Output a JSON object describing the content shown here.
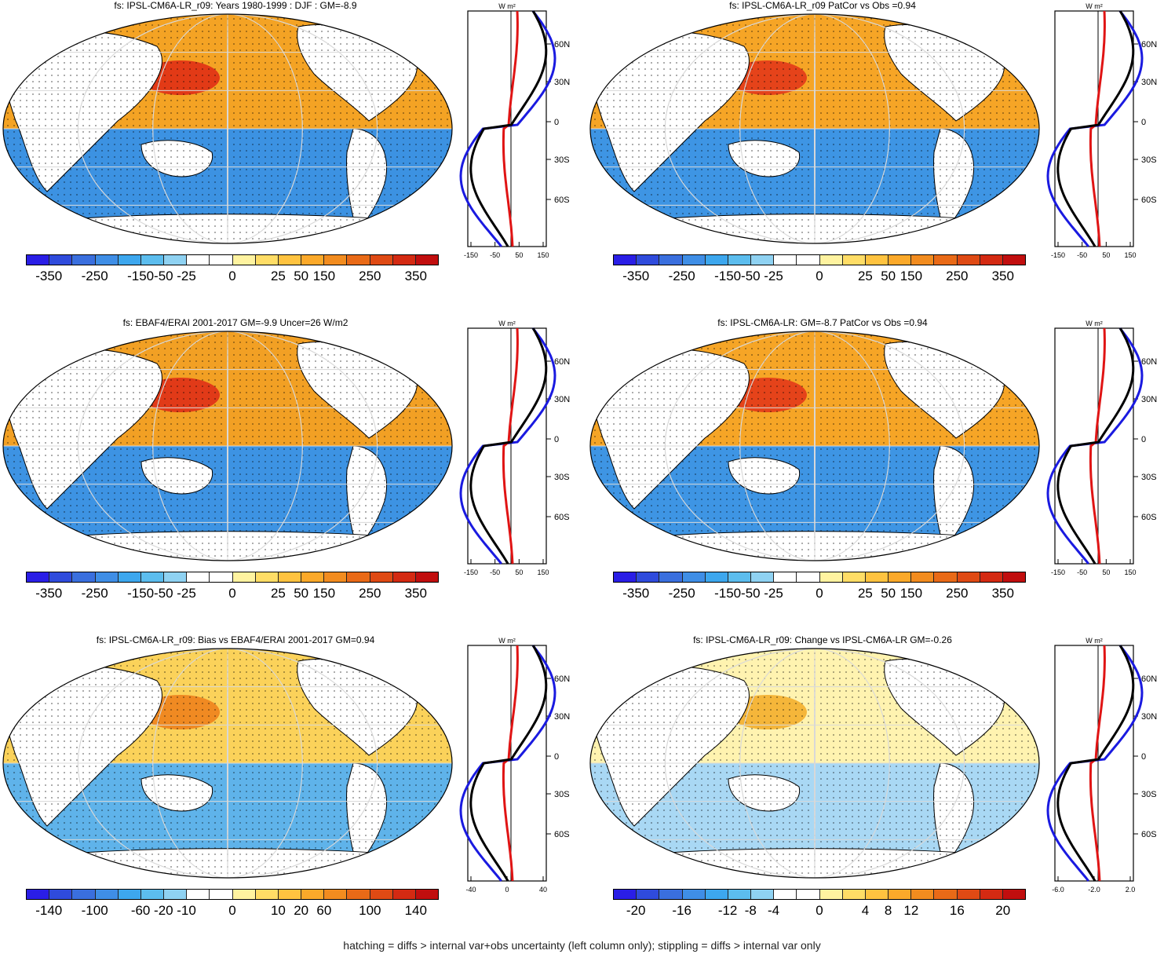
{
  "panels": [
    {
      "title": "fs: IPSL-CM6A-LR_r09: Years 1980-1999 : DJF : GM=-8.9",
      "colorbar": {
        "labels": [
          "-350",
          "-250",
          "-150",
          "-50",
          "-25",
          "0",
          "25",
          "50",
          "150",
          "250",
          "350"
        ],
        "colors": [
          "#2a1ee6",
          "#2f4bdc",
          "#3a6fde",
          "#3f8ee6",
          "#3da7ee",
          "#5cbdee",
          "#8fd2f2",
          "#ffffff",
          "#ffffff",
          "#fff3a0",
          "#ffdd66",
          "#ffc340",
          "#fba92a",
          "#f28c1f",
          "#e96a17",
          "#df4a14",
          "#d42a12",
          "#c10e0e"
        ]
      },
      "zonal": {
        "tick_labels": [
          "-150",
          "-50",
          "50",
          "150"
        ],
        "unit": "W m²",
        "lat_labels": [
          "60N",
          "30N",
          "0",
          "30S",
          "60S"
        ]
      }
    },
    {
      "title": "fs: IPSL-CM6A-LR_r09 PatCor vs Obs =0.94",
      "colorbar": {
        "labels": [
          "-350",
          "-250",
          "-150",
          "-50",
          "-25",
          "0",
          "25",
          "50",
          "150",
          "250",
          "350"
        ],
        "colors": [
          "#2a1ee6",
          "#2f4bdc",
          "#3a6fde",
          "#3f8ee6",
          "#3da7ee",
          "#5cbdee",
          "#8fd2f2",
          "#ffffff",
          "#ffffff",
          "#fff3a0",
          "#ffdd66",
          "#ffc340",
          "#fba92a",
          "#f28c1f",
          "#e96a17",
          "#df4a14",
          "#d42a12",
          "#c10e0e"
        ]
      },
      "zonal": {
        "tick_labels": [
          "-150",
          "-50",
          "50",
          "150"
        ],
        "unit": "W m²",
        "lat_labels": [
          "60N",
          "30N",
          "0",
          "30S",
          "60S"
        ]
      }
    },
    {
      "title": "fs: EBAF4/ERAI 2001-2017 GM=-9.9 Uncer=26 W/m2",
      "colorbar": {
        "labels": [
          "-350",
          "-250",
          "-150",
          "-50",
          "-25",
          "0",
          "25",
          "50",
          "150",
          "250",
          "350"
        ],
        "colors": [
          "#2a1ee6",
          "#2f4bdc",
          "#3a6fde",
          "#3f8ee6",
          "#3da7ee",
          "#5cbdee",
          "#8fd2f2",
          "#ffffff",
          "#ffffff",
          "#fff3a0",
          "#ffdd66",
          "#ffc340",
          "#fba92a",
          "#f28c1f",
          "#e96a17",
          "#df4a14",
          "#d42a12",
          "#c10e0e"
        ]
      },
      "zonal": {
        "tick_labels": [
          "-150",
          "-50",
          "50",
          "150"
        ],
        "unit": "W m²",
        "lat_labels": [
          "60N",
          "30N",
          "0",
          "30S",
          "60S"
        ]
      }
    },
    {
      "title": "fs: IPSL-CM6A-LR: GM=-8.7 PatCor vs Obs =0.94",
      "colorbar": {
        "labels": [
          "-350",
          "-250",
          "-150",
          "-50",
          "-25",
          "0",
          "25",
          "50",
          "150",
          "250",
          "350"
        ],
        "colors": [
          "#2a1ee6",
          "#2f4bdc",
          "#3a6fde",
          "#3f8ee6",
          "#3da7ee",
          "#5cbdee",
          "#8fd2f2",
          "#ffffff",
          "#ffffff",
          "#fff3a0",
          "#ffdd66",
          "#ffc340",
          "#fba92a",
          "#f28c1f",
          "#e96a17",
          "#df4a14",
          "#d42a12",
          "#c10e0e"
        ]
      },
      "zonal": {
        "tick_labels": [
          "-150",
          "-50",
          "50",
          "150"
        ],
        "unit": "W m²",
        "lat_labels": [
          "60N",
          "30N",
          "0",
          "30S",
          "60S"
        ]
      }
    },
    {
      "title": "fs: IPSL-CM6A-LR_r09: Bias vs EBAF4/ERAI 2001-2017 GM=0.94",
      "colorbar": {
        "labels": [
          "-140",
          "-100",
          "-60",
          "-20",
          "-10",
          "0",
          "10",
          "20",
          "60",
          "100",
          "140"
        ],
        "colors": [
          "#2a1ee6",
          "#2f4bdc",
          "#3a6fde",
          "#3f8ee6",
          "#3da7ee",
          "#5cbdee",
          "#8fd2f2",
          "#ffffff",
          "#ffffff",
          "#fff3a0",
          "#ffdd66",
          "#ffc340",
          "#fba92a",
          "#f28c1f",
          "#e96a17",
          "#df4a14",
          "#d42a12",
          "#c10e0e"
        ]
      },
      "zonal": {
        "tick_labels": [
          "-40",
          "0",
          "40"
        ],
        "unit": "W m²",
        "lat_labels": [
          "60N",
          "30N",
          "0",
          "30S",
          "60S"
        ]
      }
    },
    {
      "title": "fs: IPSL-CM6A-LR_r09: Change vs IPSL-CM6A-LR GM=-0.26",
      "colorbar": {
        "labels": [
          "-20",
          "-16",
          "-12",
          "-8",
          "-4",
          "0",
          "4",
          "8",
          "12",
          "16",
          "20"
        ],
        "colors": [
          "#2a1ee6",
          "#2f4bdc",
          "#3a6fde",
          "#3f8ee6",
          "#3da7ee",
          "#5cbdee",
          "#8fd2f2",
          "#ffffff",
          "#ffffff",
          "#fff3a0",
          "#ffdd66",
          "#ffc340",
          "#fba92a",
          "#f28c1f",
          "#e96a17",
          "#df4a14",
          "#d42a12",
          "#c10e0e"
        ]
      },
      "zonal": {
        "tick_labels": [
          "-6.0",
          "-2.0",
          "2.0"
        ],
        "unit": "W m²",
        "lat_labels": [
          "60N",
          "30N",
          "0",
          "30S",
          "60S"
        ]
      }
    }
  ],
  "footer": "hatching = diffs > internal var+obs uncertainty (left column only); stippling = diffs > internal var only"
}
